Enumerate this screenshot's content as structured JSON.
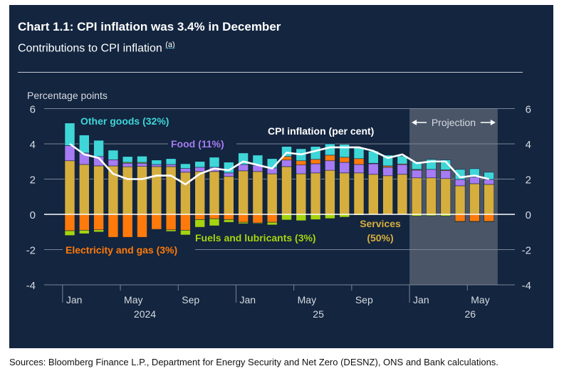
{
  "header": {
    "title": "Chart 1.1: CPI inflation was 3.4% in December",
    "subtitle": "Contributions to CPI inflation",
    "footnote_marker": "(a)"
  },
  "footer": {
    "sources": "Sources: Bloomberg Finance L.P., Department for Energy Security and Net Zero (DESNZ), ONS and Bank calculations."
  },
  "colors": {
    "background": "#13253f",
    "other_goods": "#3fd6d8",
    "food": "#a77bf3",
    "services": "#d6ae3d",
    "electricity_gas": "#ff7a0a",
    "fuels": "#a6d40f",
    "cpi_line": "#ffffff",
    "projection_shade": "#4a5668",
    "grid": "#7a8596",
    "axis_text": "#d7dbe2"
  },
  "chart_data": {
    "type": "bar",
    "stacked": true,
    "title": "Chart 1.1: CPI inflation was 3.4% in December",
    "subtitle": "Contributions to CPI inflation (a)",
    "ylabel": "Percentage points",
    "ylim": [
      -4,
      6
    ],
    "yticks": [
      6,
      4,
      2,
      0,
      -2,
      -4
    ],
    "grid": true,
    "x": [
      "Jan 2024",
      "Feb 2024",
      "Mar 2024",
      "Apr 2024",
      "May 2024",
      "Jun 2024",
      "Jul 2024",
      "Aug 2024",
      "Sep 2024",
      "Oct 2024",
      "Nov 2024",
      "Dec 2024",
      "Jan 2025",
      "Feb 2025",
      "Mar 2025",
      "Apr 2025",
      "May 2025",
      "Jun 2025",
      "Jul 2025",
      "Aug 2025",
      "Sep 2025",
      "Oct 2025",
      "Nov 2025",
      "Dec 2025",
      "Jan 2026",
      "Feb 2026",
      "Mar 2026",
      "Apr 2026",
      "May 2026",
      "Jun 2026"
    ],
    "xtick_labels": [
      {
        "label": "Jan",
        "index": 0
      },
      {
        "label": "May",
        "index": 4
      },
      {
        "label": "Sep",
        "index": 8
      },
      {
        "label": "Jan",
        "index": 12
      },
      {
        "label": "May",
        "index": 16
      },
      {
        "label": "Sep",
        "index": 20
      },
      {
        "label": "Jan",
        "index": 24
      },
      {
        "label": "May",
        "index": 28
      }
    ],
    "year_labels": [
      {
        "label": "2024",
        "index": 5.5
      },
      {
        "label": "25",
        "index": 17.5
      },
      {
        "label": "26",
        "index": 28
      }
    ],
    "year_boundaries": [
      0,
      12,
      24
    ],
    "projection": {
      "label": "Projection",
      "start_index": 24,
      "end_index": 29
    },
    "series": [
      {
        "name": "Services (50%)",
        "key": "services",
        "label_color": "#d6ae3d",
        "values": [
          3.04,
          2.83,
          2.75,
          2.75,
          2.7,
          2.72,
          2.71,
          2.71,
          2.39,
          2.43,
          2.43,
          2.15,
          2.47,
          2.43,
          2.3,
          2.71,
          2.3,
          2.35,
          2.5,
          2.35,
          2.35,
          2.27,
          2.19,
          2.27,
          2.07,
          2.07,
          2.03,
          1.62,
          1.74,
          1.7
        ]
      },
      {
        "name": "Food (11%)",
        "key": "food",
        "label_color": "#a77bf3",
        "values": [
          0.86,
          0.65,
          0.53,
          0.35,
          0.2,
          0.18,
          0.12,
          0.12,
          0.21,
          0.24,
          0.24,
          0.2,
          0.36,
          0.36,
          0.33,
          0.37,
          0.5,
          0.52,
          0.54,
          0.6,
          0.48,
          0.6,
          0.48,
          0.55,
          0.44,
          0.48,
          0.45,
          0.36,
          0.37,
          0.28
        ]
      },
      {
        "name": "Electricity and gas (3%)",
        "key": "electricity_gas",
        "label_color": "#ff7a0a",
        "values": [
          -0.93,
          -0.9,
          -0.88,
          -1.3,
          -1.3,
          -1.3,
          -0.85,
          -0.88,
          -0.9,
          -0.3,
          -0.25,
          -0.3,
          -0.45,
          -0.49,
          -0.45,
          0.2,
          0.24,
          0.25,
          0.32,
          0.29,
          0.33,
          0.03,
          0.08,
          0.04,
          0.04,
          0.0,
          0.04,
          -0.4,
          -0.4,
          -0.4
        ]
      },
      {
        "name": "Fuels and lubricants (3%)",
        "key": "fuels",
        "label_color": "#a6d40f",
        "values": [
          -0.27,
          -0.2,
          -0.12,
          0.0,
          0.05,
          0.05,
          0.0,
          -0.09,
          -0.27,
          -0.43,
          -0.4,
          -0.15,
          -0.08,
          -0.04,
          -0.15,
          -0.32,
          -0.36,
          -0.3,
          -0.24,
          -0.16,
          -0.05,
          -0.03,
          0.0,
          -0.02,
          -0.1,
          -0.08,
          -0.1,
          -0.03,
          -0.03,
          -0.03
        ]
      },
      {
        "name": "Other goods (32%)",
        "key": "other_goods",
        "label_color": "#3fd6d8",
        "values": [
          1.28,
          1.02,
          0.92,
          0.54,
          0.33,
          0.35,
          0.25,
          0.33,
          0.27,
          0.33,
          0.57,
          0.61,
          0.65,
          0.57,
          0.53,
          0.57,
          0.68,
          0.73,
          0.64,
          0.73,
          0.61,
          0.69,
          0.61,
          0.45,
          0.45,
          0.57,
          0.57,
          0.57,
          0.48,
          0.41
        ]
      }
    ],
    "line": {
      "name": "CPI inflation (per cent)",
      "values": [
        4.0,
        3.4,
        3.2,
        2.3,
        2.0,
        2.0,
        2.2,
        2.2,
        1.7,
        2.3,
        2.6,
        2.5,
        3.0,
        2.8,
        2.6,
        3.5,
        3.4,
        3.6,
        3.8,
        3.8,
        3.8,
        3.6,
        3.2,
        3.4,
        2.9,
        3.0,
        3.0,
        2.1,
        2.2,
        2.0
      ]
    },
    "annotations": [
      {
        "text": "Other goods (32%)",
        "key": "other_goods"
      },
      {
        "text": "Food (11%)",
        "key": "food"
      },
      {
        "text": "CPI inflation (per cent)",
        "key": "cpi_line"
      },
      {
        "text": "Electricity and gas (3%)",
        "key": "electricity_gas"
      },
      {
        "text": "Fuels and lubricants (3%)",
        "key": "fuels"
      },
      {
        "text": "Services",
        "key": "services"
      },
      {
        "text": "(50%)",
        "key": "services"
      }
    ]
  }
}
